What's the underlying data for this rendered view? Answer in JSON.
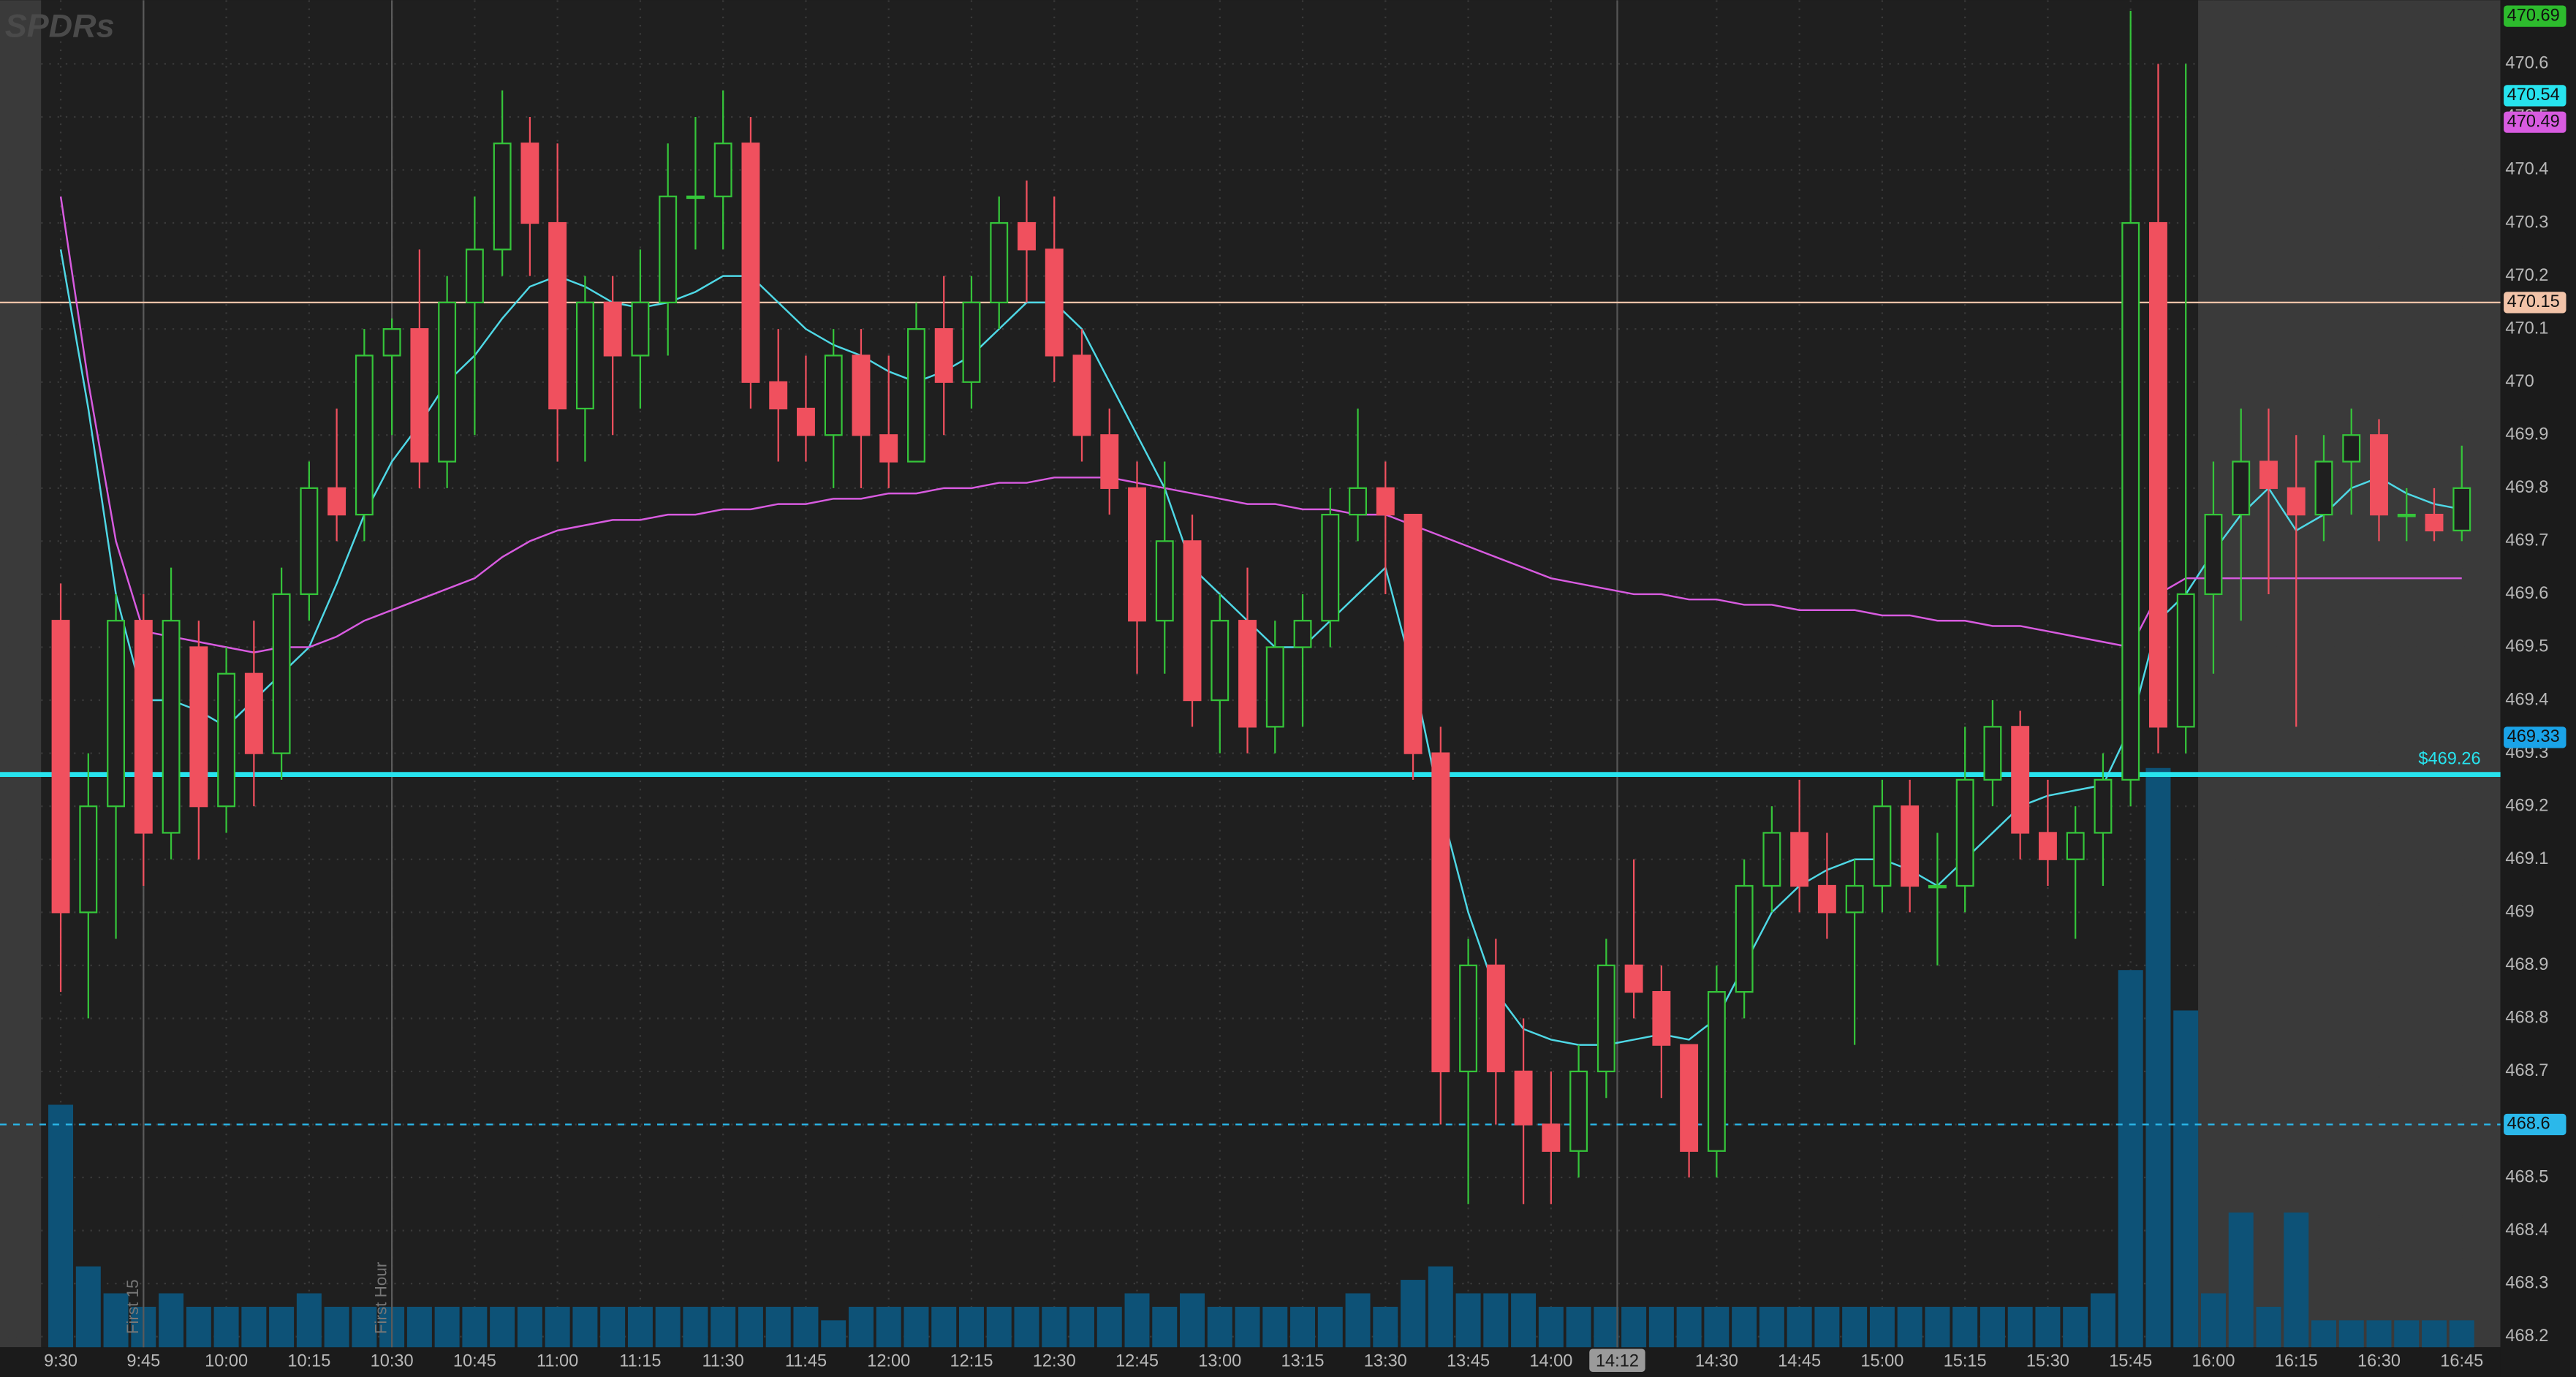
{
  "chart_data": {
    "type": "candlestick",
    "watermark": "SPDRs",
    "xlim": [
      "9:19",
      "16:52"
    ],
    "ylim": [
      468.18,
      470.72
    ],
    "vlim": [
      0,
      100
    ],
    "grid": true,
    "up_color": "#35c43a",
    "down_color": "#f0505e",
    "volume_color": "#0d5277",
    "xticks": [
      "9:30",
      "9:45",
      "10:00",
      "10:15",
      "10:30",
      "10:45",
      "11:00",
      "11:15",
      "11:30",
      "11:45",
      "12:00",
      "12:15",
      "12:30",
      "12:45",
      "13:00",
      "13:15",
      "13:30",
      "13:45",
      "14:00",
      "14:30",
      "14:45",
      "15:00",
      "15:15",
      "15:30",
      "15:45",
      "16:00",
      "16:15",
      "16:30",
      "16:45"
    ],
    "yticks": [
      468.2,
      468.3,
      468.4,
      468.5,
      468.6,
      468.7,
      468.8,
      468.9,
      469,
      469.1,
      469.2,
      469.3,
      469.4,
      469.5,
      469.6,
      469.7,
      469.8,
      469.9,
      470,
      470.1,
      470.2,
      470.3,
      470.4,
      470.5,
      470.6
    ],
    "x": [
      "9:30",
      "9:35",
      "9:40",
      "9:45",
      "9:50",
      "9:55",
      "10:00",
      "10:05",
      "10:10",
      "10:15",
      "10:20",
      "10:25",
      "10:30",
      "10:35",
      "10:40",
      "10:45",
      "10:50",
      "10:55",
      "11:00",
      "11:05",
      "11:10",
      "11:15",
      "11:20",
      "11:25",
      "11:30",
      "11:35",
      "11:40",
      "11:45",
      "11:50",
      "11:55",
      "12:00",
      "12:05",
      "12:10",
      "12:15",
      "12:20",
      "12:25",
      "12:30",
      "12:35",
      "12:40",
      "12:45",
      "12:50",
      "12:55",
      "13:00",
      "13:05",
      "13:10",
      "13:15",
      "13:20",
      "13:25",
      "13:30",
      "13:35",
      "13:40",
      "13:45",
      "13:50",
      "13:55",
      "14:00",
      "14:05",
      "14:10",
      "14:15",
      "14:20",
      "14:25",
      "14:30",
      "14:35",
      "14:40",
      "14:45",
      "14:50",
      "14:55",
      "15:00",
      "15:05",
      "15:10",
      "15:15",
      "15:20",
      "15:25",
      "15:30",
      "15:35",
      "15:40",
      "15:45",
      "15:50",
      "15:55",
      "16:00",
      "16:05",
      "16:10",
      "16:15",
      "16:20",
      "16:25",
      "16:30",
      "16:35",
      "16:40",
      "16:45"
    ],
    "open": [
      469.55,
      469.0,
      469.2,
      469.55,
      469.15,
      469.5,
      469.2,
      469.45,
      469.3,
      469.6,
      469.8,
      469.75,
      470.05,
      470.1,
      469.85,
      470.15,
      470.25,
      470.45,
      470.3,
      469.95,
      470.15,
      470.05,
      470.15,
      470.35,
      470.35,
      470.45,
      470.0,
      469.95,
      469.9,
      470.05,
      469.9,
      469.85,
      470.1,
      470.0,
      470.15,
      470.3,
      470.25,
      470.05,
      469.9,
      469.8,
      469.55,
      469.7,
      469.4,
      469.55,
      469.35,
      469.5,
      469.55,
      469.75,
      469.8,
      469.75,
      469.3,
      468.7,
      468.9,
      468.7,
      468.6,
      468.55,
      468.7,
      468.9,
      468.85,
      468.75,
      468.55,
      468.85,
      469.05,
      469.15,
      469.05,
      469.0,
      469.05,
      469.2,
      469.05,
      469.05,
      469.25,
      469.35,
      469.15,
      469.1,
      469.15,
      469.25,
      470.3,
      469.35,
      469.6,
      469.75,
      469.85,
      469.8,
      469.75,
      469.85,
      469.9,
      469.75,
      469.75,
      469.72
    ],
    "high": [
      469.62,
      469.3,
      469.6,
      469.6,
      469.65,
      469.55,
      469.5,
      469.55,
      469.65,
      469.85,
      469.95,
      470.1,
      470.12,
      470.25,
      470.2,
      470.35,
      470.55,
      470.5,
      470.45,
      470.2,
      470.2,
      470.25,
      470.45,
      470.5,
      470.55,
      470.5,
      470.1,
      470.05,
      470.1,
      470.1,
      470.05,
      470.15,
      470.2,
      470.2,
      470.35,
      470.38,
      470.35,
      470.1,
      469.95,
      469.85,
      469.85,
      469.75,
      469.6,
      469.65,
      469.55,
      469.6,
      469.8,
      469.95,
      469.85,
      469.75,
      469.35,
      468.95,
      468.95,
      468.8,
      468.7,
      468.75,
      468.95,
      469.1,
      468.9,
      468.75,
      468.9,
      469.1,
      469.2,
      469.25,
      469.15,
      469.1,
      469.25,
      469.25,
      469.15,
      469.35,
      469.4,
      469.38,
      469.25,
      469.2,
      469.3,
      470.7,
      470.6,
      470.6,
      469.85,
      469.95,
      469.95,
      469.9,
      469.9,
      469.95,
      469.93,
      469.8,
      469.8,
      469.88
    ],
    "low": [
      468.85,
      468.8,
      468.95,
      469.05,
      469.1,
      469.1,
      469.15,
      469.2,
      469.25,
      469.55,
      469.7,
      469.7,
      469.9,
      469.8,
      469.8,
      469.9,
      470.2,
      470.2,
      469.85,
      469.85,
      469.9,
      469.95,
      470.05,
      470.25,
      470.25,
      469.95,
      469.85,
      469.85,
      469.8,
      469.8,
      469.8,
      469.85,
      469.9,
      469.95,
      470.1,
      470.15,
      470.0,
      469.85,
      469.75,
      469.45,
      469.45,
      469.35,
      469.3,
      469.3,
      469.3,
      469.35,
      469.5,
      469.7,
      469.6,
      469.25,
      468.6,
      468.45,
      468.6,
      468.45,
      468.45,
      468.5,
      468.65,
      468.8,
      468.65,
      468.5,
      468.5,
      468.8,
      469.0,
      469.0,
      468.95,
      468.75,
      469.0,
      469.0,
      468.9,
      469.0,
      469.2,
      469.1,
      469.05,
      468.95,
      469.05,
      469.2,
      469.3,
      469.3,
      469.45,
      469.55,
      469.6,
      469.35,
      469.7,
      469.75,
      469.7,
      469.7,
      469.7,
      469.7
    ],
    "close": [
      469.0,
      469.2,
      469.55,
      469.15,
      469.55,
      469.2,
      469.45,
      469.3,
      469.6,
      469.8,
      469.75,
      470.05,
      470.1,
      469.85,
      470.15,
      470.25,
      470.45,
      470.3,
      469.95,
      470.15,
      470.05,
      470.15,
      470.35,
      470.35,
      470.45,
      470.0,
      469.95,
      469.9,
      470.05,
      469.9,
      469.85,
      470.1,
      470.0,
      470.15,
      470.3,
      470.25,
      470.05,
      469.9,
      469.8,
      469.55,
      469.7,
      469.4,
      469.55,
      469.35,
      469.5,
      469.55,
      469.75,
      469.8,
      469.75,
      469.3,
      468.7,
      468.9,
      468.7,
      468.6,
      468.55,
      468.7,
      468.9,
      468.85,
      468.75,
      468.55,
      468.85,
      469.05,
      469.15,
      469.05,
      469.0,
      469.05,
      469.2,
      469.05,
      469.05,
      469.25,
      469.35,
      469.15,
      469.1,
      469.15,
      469.25,
      470.3,
      469.35,
      469.6,
      469.75,
      469.85,
      469.8,
      469.75,
      469.85,
      469.9,
      469.75,
      469.75,
      469.72,
      469.8
    ],
    "volume": [
      18,
      6,
      4,
      3,
      4,
      3,
      3,
      3,
      3,
      4,
      3,
      3,
      3,
      3,
      3,
      3,
      3,
      3,
      3,
      3,
      3,
      3,
      3,
      3,
      3,
      3,
      3,
      3,
      2,
      3,
      3,
      3,
      3,
      3,
      3,
      3,
      3,
      3,
      3,
      4,
      3,
      4,
      3,
      3,
      3,
      3,
      3,
      4,
      3,
      5,
      6,
      4,
      4,
      4,
      3,
      3,
      3,
      3,
      3,
      3,
      3,
      3,
      3,
      3,
      3,
      3,
      3,
      3,
      3,
      3,
      3,
      3,
      3,
      3,
      4,
      28,
      43,
      25,
      4,
      10,
      3,
      10,
      2,
      2,
      2,
      2,
      2,
      2
    ],
    "lines": [
      {
        "color": "#4fd8e6",
        "values": [
          470.25,
          469.95,
          469.6,
          469.4,
          469.4,
          469.38,
          469.35,
          469.4,
          469.45,
          469.5,
          469.62,
          469.75,
          469.85,
          469.92,
          470.0,
          470.05,
          470.12,
          470.18,
          470.2,
          470.18,
          470.15,
          470.14,
          470.15,
          470.17,
          470.2,
          470.2,
          470.15,
          470.1,
          470.07,
          470.05,
          470.02,
          470.0,
          470.02,
          470.05,
          470.1,
          470.15,
          470.15,
          470.1,
          470.0,
          469.9,
          469.8,
          469.65,
          469.6,
          469.55,
          469.5,
          469.5,
          469.55,
          469.6,
          469.65,
          469.45,
          469.2,
          469.0,
          468.85,
          468.78,
          468.76,
          468.75,
          468.75,
          468.76,
          468.77,
          468.76,
          468.8,
          468.9,
          469.0,
          469.05,
          469.08,
          469.1,
          469.1,
          469.08,
          469.05,
          469.1,
          469.15,
          469.2,
          469.22,
          469.23,
          469.24,
          469.35,
          469.55,
          469.6,
          469.68,
          469.75,
          469.8,
          469.72,
          469.75,
          469.8,
          469.82,
          469.79,
          469.77,
          469.76
        ]
      },
      {
        "color": "#d85be0",
        "values": [
          470.35,
          470.0,
          469.7,
          469.53,
          469.52,
          469.51,
          469.5,
          469.49,
          469.5,
          469.5,
          469.52,
          469.55,
          469.57,
          469.59,
          469.61,
          469.63,
          469.67,
          469.7,
          469.72,
          469.73,
          469.74,
          469.74,
          469.75,
          469.75,
          469.76,
          469.76,
          469.77,
          469.77,
          469.78,
          469.78,
          469.79,
          469.79,
          469.8,
          469.8,
          469.81,
          469.81,
          469.82,
          469.82,
          469.82,
          469.81,
          469.8,
          469.79,
          469.78,
          469.77,
          469.77,
          469.76,
          469.76,
          469.75,
          469.75,
          469.73,
          469.71,
          469.69,
          469.67,
          469.65,
          469.63,
          469.62,
          469.61,
          469.6,
          469.6,
          469.59,
          469.59,
          469.58,
          469.58,
          469.57,
          469.57,
          469.57,
          469.56,
          469.56,
          469.55,
          469.55,
          469.54,
          469.54,
          469.53,
          469.52,
          469.51,
          469.5,
          469.6,
          469.63,
          469.63,
          469.63,
          469.63,
          469.63,
          469.63,
          469.63,
          469.63,
          469.63,
          469.63,
          469.63
        ]
      }
    ],
    "levels": [
      {
        "value": 470.15,
        "color": "#f2c3a8"
      },
      {
        "value": 469.26,
        "color": "#27e3ee",
        "label": "$469.26"
      },
      {
        "value": 468.6,
        "color": "#2bb8ea",
        "dashed": true
      }
    ],
    "price_badges": [
      {
        "value": 470.69,
        "color": "#2dbb2d"
      },
      {
        "value": 470.54,
        "color": "#27e3ee"
      },
      {
        "value": 470.49,
        "color": "#d85be0"
      },
      {
        "value": 470.15,
        "color": "#f2c3a8"
      },
      {
        "value": 469.33,
        "color": "#1aa3e8"
      },
      {
        "value": 468.6,
        "color": "#2bb8ea"
      }
    ],
    "markers": [
      {
        "x": "9:45",
        "label": "First 15"
      },
      {
        "x": "10:30",
        "label": "First Hour"
      }
    ],
    "crosshair": "14:12"
  }
}
